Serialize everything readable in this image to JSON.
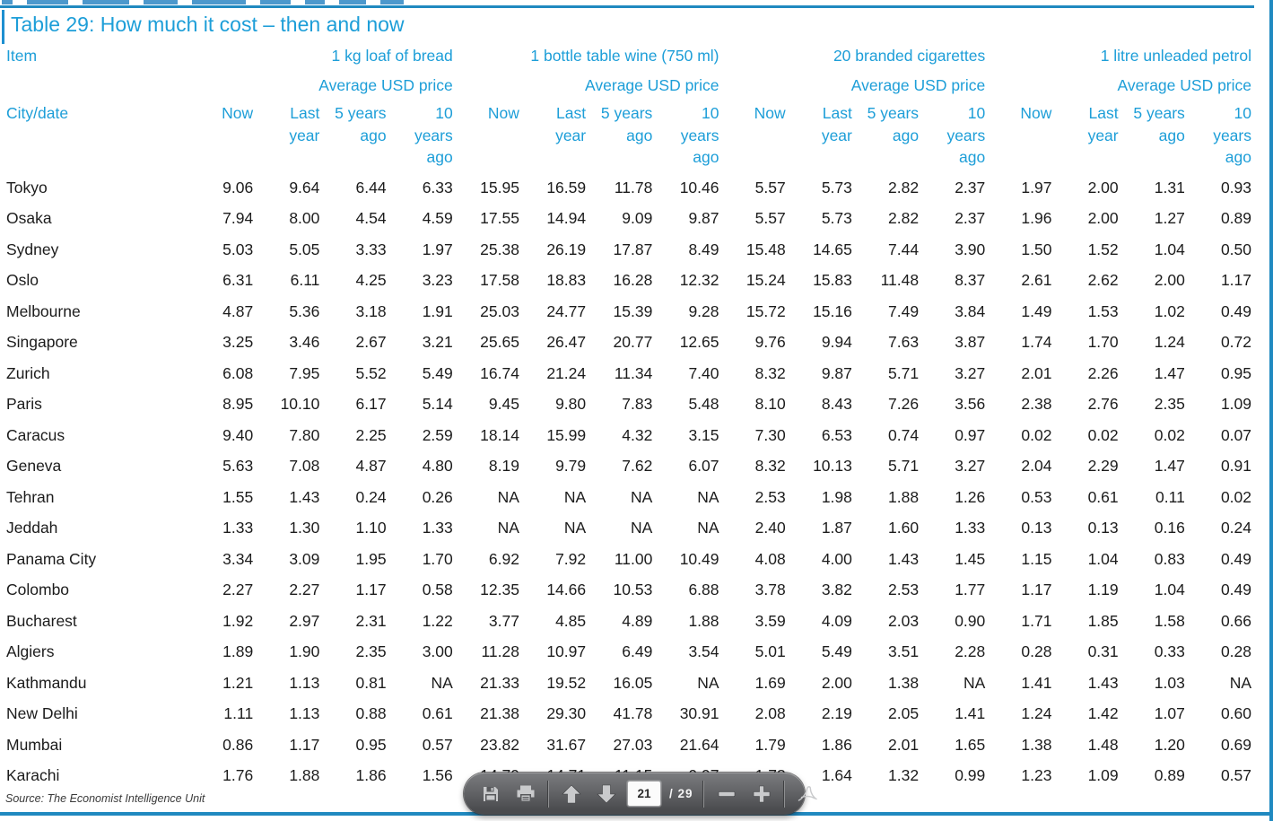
{
  "page": {
    "title": "Table 29: How much it cost – then and now",
    "source": "Source: The Economist Intelligence Unit"
  },
  "table": {
    "item_label": "Item",
    "city_label": "City/date",
    "price_sub_label": "Average USD price",
    "groups": [
      "1 kg loaf of bread",
      "1 bottle table wine (750 ml)",
      "20 branded cigarettes",
      "1 litre unleaded petrol"
    ],
    "period_headers": [
      "Now",
      "Last\nyear",
      "5 years\nago",
      "10\nyears\nago"
    ],
    "rows": [
      {
        "city": "Tokyo",
        "values": [
          "9.06",
          "9.64",
          "6.44",
          "6.33",
          "15.95",
          "16.59",
          "11.78",
          "10.46",
          "5.57",
          "5.73",
          "2.82",
          "2.37",
          "1.97",
          "2.00",
          "1.31",
          "0.93"
        ]
      },
      {
        "city": "Osaka",
        "values": [
          "7.94",
          "8.00",
          "4.54",
          "4.59",
          "17.55",
          "14.94",
          "9.09",
          "9.87",
          "5.57",
          "5.73",
          "2.82",
          "2.37",
          "1.96",
          "2.00",
          "1.27",
          "0.89"
        ]
      },
      {
        "city": "Sydney",
        "values": [
          "5.03",
          "5.05",
          "3.33",
          "1.97",
          "25.38",
          "26.19",
          "17.87",
          "8.49",
          "15.48",
          "14.65",
          "7.44",
          "3.90",
          "1.50",
          "1.52",
          "1.04",
          "0.50"
        ]
      },
      {
        "city": "Oslo",
        "values": [
          "6.31",
          "6.11",
          "4.25",
          "3.23",
          "17.58",
          "18.83",
          "16.28",
          "12.32",
          "15.24",
          "15.83",
          "11.48",
          "8.37",
          "2.61",
          "2.62",
          "2.00",
          "1.17"
        ]
      },
      {
        "city": "Melbourne",
        "values": [
          "4.87",
          "5.36",
          "3.18",
          "1.91",
          "25.03",
          "24.77",
          "15.39",
          "9.28",
          "15.72",
          "15.16",
          "7.49",
          "3.84",
          "1.49",
          "1.53",
          "1.02",
          "0.49"
        ]
      },
      {
        "city": "Singapore",
        "values": [
          "3.25",
          "3.46",
          "2.67",
          "3.21",
          "25.65",
          "26.47",
          "20.77",
          "12.65",
          "9.76",
          "9.94",
          "7.63",
          "3.87",
          "1.74",
          "1.70",
          "1.24",
          "0.72"
        ]
      },
      {
        "city": "Zurich",
        "values": [
          "6.08",
          "7.95",
          "5.52",
          "5.49",
          "16.74",
          "21.24",
          "11.34",
          "7.40",
          "8.32",
          "9.87",
          "5.71",
          "3.27",
          "2.01",
          "2.26",
          "1.47",
          "0.95"
        ]
      },
      {
        "city": "Paris",
        "values": [
          "8.95",
          "10.10",
          "6.17",
          "5.14",
          "9.45",
          "9.80",
          "7.83",
          "5.48",
          "8.10",
          "8.43",
          "7.26",
          "3.56",
          "2.38",
          "2.76",
          "2.35",
          "1.09"
        ]
      },
      {
        "city": "Caracus",
        "values": [
          "9.40",
          "7.80",
          "2.25",
          "2.59",
          "18.14",
          "15.99",
          "4.32",
          "3.15",
          "7.30",
          "6.53",
          "0.74",
          "0.97",
          "0.02",
          "0.02",
          "0.02",
          "0.07"
        ]
      },
      {
        "city": "Geneva",
        "values": [
          "5.63",
          "7.08",
          "4.87",
          "4.80",
          "8.19",
          "9.79",
          "7.62",
          "6.07",
          "8.32",
          "10.13",
          "5.71",
          "3.27",
          "2.04",
          "2.29",
          "1.47",
          "0.91"
        ]
      },
      {
        "city": "Tehran",
        "values": [
          "1.55",
          "1.43",
          "0.24",
          "0.26",
          "NA",
          "NA",
          "NA",
          "NA",
          "2.53",
          "1.98",
          "1.88",
          "1.26",
          "0.53",
          "0.61",
          "0.11",
          "0.02"
        ]
      },
      {
        "city": "Jeddah",
        "values": [
          "1.33",
          "1.30",
          "1.10",
          "1.33",
          "NA",
          "NA",
          "NA",
          "NA",
          "2.40",
          "1.87",
          "1.60",
          "1.33",
          "0.13",
          "0.13",
          "0.16",
          "0.24"
        ]
      },
      {
        "city": "Panama City",
        "values": [
          "3.34",
          "3.09",
          "1.95",
          "1.70",
          "6.92",
          "7.92",
          "11.00",
          "10.49",
          "4.08",
          "4.00",
          "1.43",
          "1.45",
          "1.15",
          "1.04",
          "0.83",
          "0.49"
        ]
      },
      {
        "city": "Colombo",
        "values": [
          "2.27",
          "2.27",
          "1.17",
          "0.58",
          "12.35",
          "14.66",
          "10.53",
          "6.88",
          "3.78",
          "3.82",
          "2.53",
          "1.77",
          "1.17",
          "1.19",
          "1.04",
          "0.49"
        ]
      },
      {
        "city": "Bucharest",
        "values": [
          "1.92",
          "2.97",
          "2.31",
          "1.22",
          "3.77",
          "4.85",
          "4.89",
          "1.88",
          "3.59",
          "4.09",
          "2.03",
          "0.90",
          "1.71",
          "1.85",
          "1.58",
          "0.66"
        ]
      },
      {
        "city": "Algiers",
        "values": [
          "1.89",
          "1.90",
          "2.35",
          "3.00",
          "11.28",
          "10.97",
          "6.49",
          "3.54",
          "5.01",
          "5.49",
          "3.51",
          "2.28",
          "0.28",
          "0.31",
          "0.33",
          "0.28"
        ]
      },
      {
        "city": "Kathmandu",
        "values": [
          "1.21",
          "1.13",
          "0.81",
          "NA",
          "21.33",
          "19.52",
          "16.05",
          "NA",
          "1.69",
          "2.00",
          "1.38",
          "NA",
          "1.41",
          "1.43",
          "1.03",
          "NA"
        ]
      },
      {
        "city": "New Delhi",
        "values": [
          "1.11",
          "1.13",
          "0.88",
          "0.61",
          "21.38",
          "29.30",
          "41.78",
          "30.91",
          "2.08",
          "2.19",
          "2.05",
          "1.41",
          "1.24",
          "1.42",
          "1.07",
          "0.60"
        ]
      },
      {
        "city": "Mumbai",
        "values": [
          "0.86",
          "1.17",
          "0.95",
          "0.57",
          "23.82",
          "31.67",
          "27.03",
          "21.64",
          "1.79",
          "1.86",
          "2.01",
          "1.65",
          "1.38",
          "1.48",
          "1.20",
          "0.69"
        ]
      },
      {
        "city": "Karachi",
        "values": [
          "1.76",
          "1.88",
          "1.86",
          "1.56",
          "14.79",
          "14.71",
          "11.15",
          "9.97",
          "1.73",
          "1.64",
          "1.32",
          "0.99",
          "1.23",
          "1.09",
          "0.89",
          "0.57"
        ]
      }
    ]
  },
  "toolbar": {
    "icons": [
      "save-icon",
      "print-icon",
      "page-up-icon",
      "page-down-icon",
      "zoom-out-icon",
      "zoom-in-icon",
      "acrobat-logo-icon"
    ],
    "page_current": "21",
    "page_divider": "/",
    "page_total": "29"
  },
  "colors": {
    "accent_blue": "#1d9ed8",
    "line_blue": "#2089c0",
    "toolbar_gray": "#58595c",
    "icon_gray": "#c9cacc"
  }
}
